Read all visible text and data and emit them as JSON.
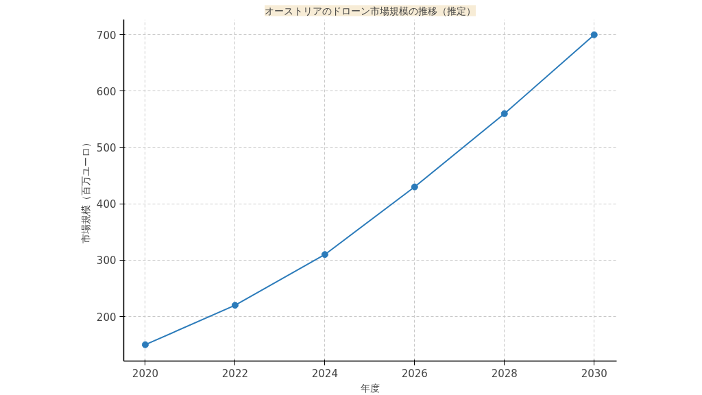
{
  "chart_data": {
    "type": "line",
    "title": "オーストリアのドローン市場規模の推移（推定）",
    "xlabel": "年度",
    "ylabel": "市場規模（百万ユーロ）",
    "x": [
      2020,
      2022,
      2024,
      2026,
      2028,
      2030
    ],
    "series": [
      {
        "color": "#2b7bba",
        "values": [
          150,
          220,
          310,
          430,
          560,
          700
        ]
      }
    ],
    "xlim": [
      2019.52,
      2030.5
    ],
    "xticks": [
      2020,
      2022,
      2024,
      2026,
      2028,
      2030
    ],
    "ylim": [
      121,
      727
    ],
    "yticks": [
      200,
      300,
      400,
      500,
      600,
      700
    ],
    "grid": true,
    "marker": "circle",
    "line_style": "solid"
  }
}
